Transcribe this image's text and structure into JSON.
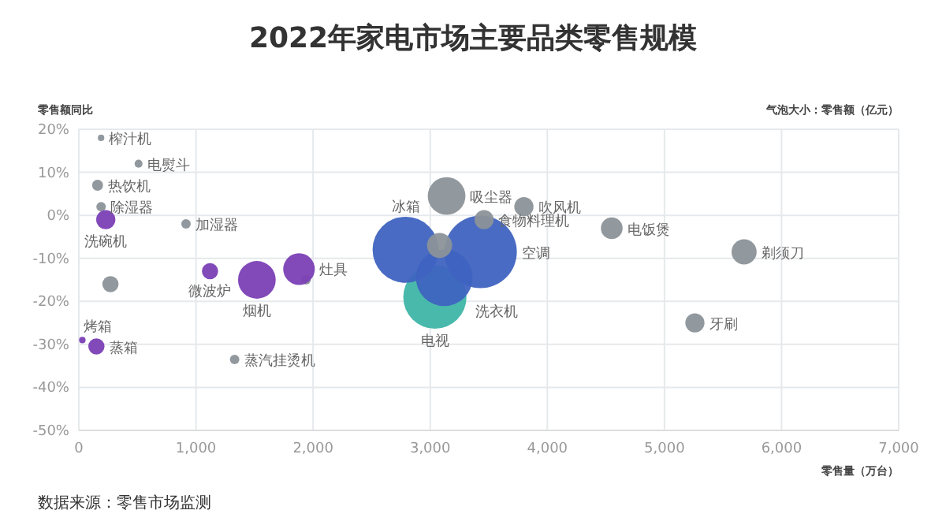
{
  "chart_data": {
    "type": "bubble",
    "title": "2022年家电市场主要品类零售规模",
    "xlabel": "零售量（万台）",
    "ylabel": "零售额同比",
    "xlim": [
      0,
      7000
    ],
    "ylim": [
      -50,
      20
    ],
    "xticks": [
      0,
      {
        "value": 1000,
        "label": "1,000"
      },
      {
        "value": 2000,
        "label": "2,000"
      },
      {
        "value": 3000,
        "label": "3,000"
      },
      {
        "value": 4000,
        "label": "4,000"
      },
      {
        "value": 5000,
        "label": "5,000"
      },
      {
        "value": 6000,
        "label": "6,000"
      },
      {
        "value": 7000,
        "label": "7,000"
      }
    ],
    "yticks": [
      {
        "value": 20,
        "label": "20%"
      },
      {
        "value": 10,
        "label": "10%"
      },
      {
        "value": 0,
        "label": "0%"
      },
      {
        "value": -10,
        "label": "-10%"
      },
      {
        "value": -20,
        "label": "-20%"
      },
      {
        "value": -30,
        "label": "-30%"
      },
      {
        "value": -40,
        "label": "-40%"
      },
      {
        "value": -50,
        "label": "-50%"
      }
    ],
    "grid": true,
    "series": [
      {
        "color": "#3fb5a8",
        "x": [
          3040
        ],
        "values": [
          -19
        ],
        "sizes": [
          0.76
        ]
      },
      {
        "color": "#3f63c0",
        "x": [
          2790,
          3430,
          3120
        ],
        "values": [
          -8,
          -8.5,
          -14.5
        ],
        "sizes": [
          0.83,
          1,
          0.61
        ]
      },
      {
        "color": "#8c9399",
        "x": [
          190,
          510,
          160,
          190,
          915,
          270,
          1330,
          1940,
          3140,
          3080,
          3460,
          3800,
          4550,
          5680,
          5260
        ],
        "values": [
          18,
          12,
          7,
          2,
          -2,
          -16,
          -33.5,
          -15,
          4.5,
          -7,
          -1,
          2,
          -3,
          -8.5,
          -25
        ],
        "sizes": [
          0.008,
          0.012,
          0.023,
          0.017,
          0.017,
          0.05,
          0.017,
          0.017,
          0.27,
          0.12,
          0.07,
          0.07,
          0.09,
          0.12,
          0.07
        ]
      },
      {
        "color": "#7b3fb5",
        "x": [
          230,
          30,
          150,
          1120,
          1520,
          1880
        ],
        "values": [
          -1,
          -29,
          -30.5,
          -13,
          -15,
          -12.5
        ],
        "sizes": [
          0.07,
          0.008,
          0.05,
          0.05,
          0.27,
          0.19
        ]
      }
    ],
    "annotations": [
      {
        "text": "榨汁机",
        "x": 190,
        "y": 18
      },
      {
        "text": "电熨斗",
        "x": 510,
        "y": 12
      },
      {
        "text": "热饮机",
        "x": 160,
        "y": 7
      },
      {
        "text": "除湿器",
        "x": 190,
        "y": 2
      },
      {
        "text": "洗碗机",
        "x": 230,
        "y": -1
      },
      {
        "text": "加湿器",
        "x": 915,
        "y": -2
      },
      {
        "text": "烤箱",
        "x": 30,
        "y": -29
      },
      {
        "text": "蒸箱",
        "x": 150,
        "y": -30.5
      },
      {
        "text": "微波炉",
        "x": 1120,
        "y": -13
      },
      {
        "text": "烟机",
        "x": 1520,
        "y": -15
      },
      {
        "text": "灶具",
        "x": 1880,
        "y": -12.5
      },
      {
        "text": "蒸汽挂烫机",
        "x": 1330,
        "y": -33.5
      },
      {
        "text": "吸尘器",
        "x": 3140,
        "y": 4.5
      },
      {
        "text": "吹风机",
        "x": 3800,
        "y": 2
      },
      {
        "text": "食物料理机",
        "x": 3460,
        "y": -1
      },
      {
        "text": "电饭煲",
        "x": 4550,
        "y": -3
      },
      {
        "text": "剃须刀",
        "x": 5680,
        "y": -8.5
      },
      {
        "text": "牙刷",
        "x": 5260,
        "y": -25
      },
      {
        "text": "冰箱",
        "x": 2790,
        "y": -8
      },
      {
        "text": "空调",
        "x": 3430,
        "y": -8.5
      },
      {
        "text": "洗衣机",
        "x": 3120,
        "y": -14.5
      },
      {
        "text": "电视",
        "x": 3040,
        "y": -19
      },
      "气泡大小：零售额（亿元）",
      "数据来源：零售市场监测"
    ]
  }
}
